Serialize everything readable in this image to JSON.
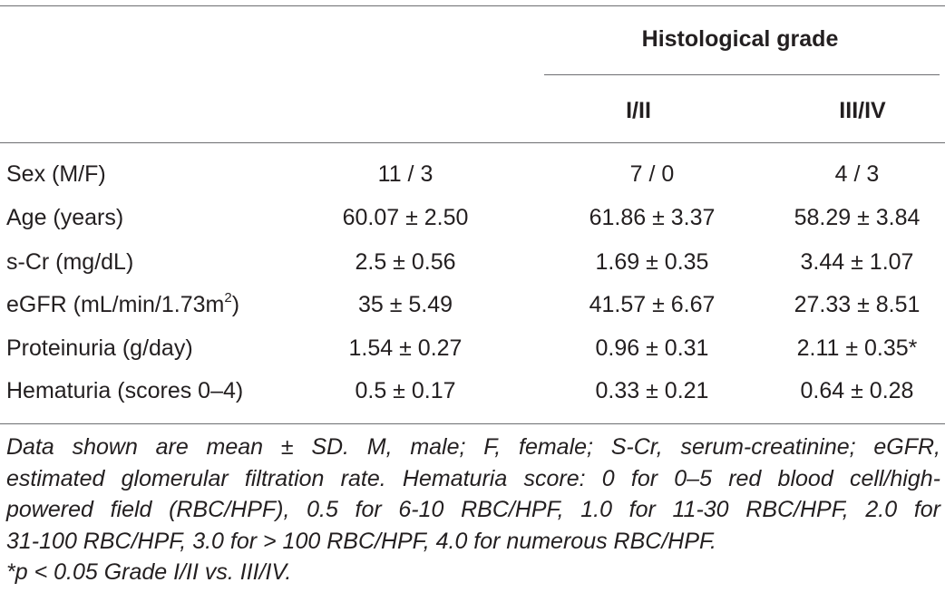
{
  "table": {
    "group_header": "Histological grade",
    "subheaders": [
      "I/II",
      "III/IV"
    ],
    "rows": [
      {
        "label": "Sex (M/F)",
        "label_sup": "",
        "values": [
          "11 / 3",
          "7 / 0",
          "4 / 3"
        ]
      },
      {
        "label": "Age (years)",
        "label_sup": "",
        "values": [
          "60.07 ± 2.50",
          "61.86 ± 3.37",
          "58.29 ± 3.84"
        ]
      },
      {
        "label": "s-Cr (mg/dL)",
        "label_sup": "",
        "values": [
          "2.5 ± 0.56",
          "1.69 ± 0.35",
          "3.44 ± 1.07"
        ]
      },
      {
        "label": "eGFR (mL/min/1.73m",
        "label_sup": "2",
        "label_suffix": ")",
        "values": [
          "35 ± 5.49",
          "41.57 ± 6.67",
          "27.33 ± 8.51"
        ]
      },
      {
        "label": "Proteinuria (g/day)",
        "label_sup": "",
        "values": [
          "1.54 ± 0.27",
          "0.96 ± 0.31",
          "2.11 ± 0.35*"
        ]
      },
      {
        "label": "Hematuria (scores 0–4)",
        "label_sup": "",
        "values": [
          "0.5 ± 0.17",
          "0.33 ± 0.21",
          "0.64 ± 0.28"
        ]
      }
    ]
  },
  "footnote": {
    "lines": [
      "Data shown are mean ± SD. M, male; F, female; S-Cr, serum-creatinine; eGFR,",
      "estimated glomerular filtration rate. Hematuria score: 0 for 0–5 red blood cell/high-",
      "powered field (RBC/HPF), 0.5 for 6-10 RBC/HPF, 1.0 for 11-30 RBC/HPF, 2.0 for",
      "31-100 RBC/HPF, 3.0 for > 100 RBC/HPF, 4.0 for numerous RBC/HPF.",
      "*p < 0.05 Grade I/II vs. III/IV."
    ]
  }
}
